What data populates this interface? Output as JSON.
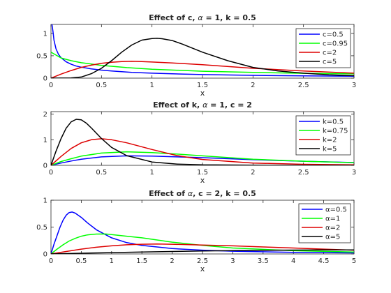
{
  "figure": {
    "background": "#ffffff",
    "axes_color": "#262626"
  },
  "chart_data": [
    {
      "type": "line",
      "title_parts": [
        "Effect of c, ",
        "α",
        " = 1, k = 0.5"
      ],
      "title": "Effect of c, α = 1, k = 0.5",
      "xlabel": "x",
      "ylabel": "",
      "xlim": [
        0,
        3
      ],
      "ylim": [
        0,
        1.2
      ],
      "xticks": [
        0,
        0.5,
        1,
        1.5,
        2,
        2.5,
        3
      ],
      "xtick_labels": [
        "0",
        "0.5",
        "1",
        "1.5",
        "2",
        "2.5",
        "3"
      ],
      "yticks": [
        0,
        0.5,
        1
      ],
      "ytick_labels": [
        "0",
        "0.5",
        "1"
      ],
      "grid": false,
      "legend_position": "top-right",
      "series": [
        {
          "name": "c=0.5",
          "color": "#0000ff",
          "x": [
            0.005,
            0.01,
            0.02,
            0.03,
            0.05,
            0.075,
            0.1,
            0.15,
            0.2,
            0.25,
            0.3,
            0.4,
            0.5,
            0.6,
            0.8,
            1.0,
            1.2,
            1.5,
            2.0,
            2.5,
            3.0
          ],
          "y": [
            1.2,
            1.2,
            1.04,
            0.85,
            0.655,
            0.53,
            0.455,
            0.365,
            0.31,
            0.27,
            0.245,
            0.205,
            0.18,
            0.16,
            0.13,
            0.11,
            0.097,
            0.08,
            0.062,
            0.05,
            0.042
          ]
        },
        {
          "name": "c=0.95",
          "color": "#00ff00",
          "x": [
            0,
            0.1,
            0.2,
            0.3,
            0.5,
            0.75,
            1.0,
            1.5,
            2.0,
            2.5,
            3.0
          ],
          "y": [
            0.58,
            0.45,
            0.39,
            0.345,
            0.285,
            0.235,
            0.2,
            0.155,
            0.128,
            0.108,
            0.095
          ]
        },
        {
          "name": "c=2",
          "color": "#dd0000",
          "x": [
            0,
            0.1,
            0.2,
            0.3,
            0.4,
            0.5,
            0.6,
            0.7,
            0.8,
            0.9,
            1.0,
            1.2,
            1.5,
            2.0,
            2.5,
            3.0
          ],
          "y": [
            0,
            0.09,
            0.17,
            0.24,
            0.29,
            0.33,
            0.355,
            0.37,
            0.375,
            0.37,
            0.36,
            0.34,
            0.3,
            0.22,
            0.16,
            0.11
          ]
        },
        {
          "name": "c=5",
          "color": "#000000",
          "x": [
            0,
            0.2,
            0.3,
            0.4,
            0.5,
            0.6,
            0.7,
            0.8,
            0.9,
            1.0,
            1.05,
            1.1,
            1.2,
            1.3,
            1.5,
            1.75,
            2.0,
            2.25,
            2.5,
            2.75,
            3.0
          ],
          "y": [
            0,
            0.003,
            0.025,
            0.1,
            0.22,
            0.39,
            0.58,
            0.74,
            0.85,
            0.885,
            0.89,
            0.88,
            0.84,
            0.76,
            0.58,
            0.39,
            0.24,
            0.16,
            0.11,
            0.075,
            0.055
          ]
        }
      ]
    },
    {
      "type": "line",
      "title_parts": [
        "Effect of k, ",
        "α",
        " = 1, c = 2"
      ],
      "title": "Effect of k, α = 1, c = 2",
      "xlabel": "x",
      "ylabel": "",
      "xlim": [
        0,
        3
      ],
      "ylim": [
        0,
        2.1
      ],
      "xticks": [
        0,
        0.5,
        1,
        1.5,
        2,
        2.5,
        3
      ],
      "xtick_labels": [
        "0",
        "0.5",
        "1",
        "1.5",
        "2",
        "2.5",
        "3"
      ],
      "yticks": [
        0,
        1,
        2
      ],
      "ytick_labels": [
        "0",
        "1",
        "2"
      ],
      "grid": false,
      "legend_position": "top-right",
      "series": [
        {
          "name": "k=0.5",
          "color": "#0000ff",
          "x": [
            0,
            0.1,
            0.2,
            0.3,
            0.5,
            0.75,
            1.0,
            1.25,
            1.5,
            2.0,
            2.5,
            3.0
          ],
          "y": [
            0,
            0.09,
            0.17,
            0.24,
            0.33,
            0.37,
            0.36,
            0.33,
            0.3,
            0.22,
            0.16,
            0.11
          ]
        },
        {
          "name": "k=0.75",
          "color": "#00ff00",
          "x": [
            0,
            0.1,
            0.2,
            0.3,
            0.5,
            0.75,
            1.0,
            1.25,
            1.5,
            2.0,
            2.5,
            3.0
          ],
          "y": [
            0,
            0.15,
            0.26,
            0.36,
            0.48,
            0.53,
            0.5,
            0.44,
            0.37,
            0.24,
            0.16,
            0.1
          ]
        },
        {
          "name": "k=2",
          "color": "#dd0000",
          "x": [
            0,
            0.1,
            0.2,
            0.3,
            0.4,
            0.5,
            0.6,
            0.75,
            1.0,
            1.25,
            1.5,
            2.0,
            2.5,
            3.0
          ],
          "y": [
            0,
            0.35,
            0.66,
            0.88,
            1.0,
            1.04,
            1.0,
            0.88,
            0.62,
            0.38,
            0.23,
            0.09,
            0.04,
            0.02
          ]
        },
        {
          "name": "k=5",
          "color": "#000000",
          "x": [
            0,
            0.05,
            0.1,
            0.15,
            0.2,
            0.25,
            0.3,
            0.35,
            0.4,
            0.5,
            0.6,
            0.75,
            1.0,
            1.25,
            1.5,
            2.0,
            3.0
          ],
          "y": [
            0,
            0.55,
            1.05,
            1.45,
            1.7,
            1.8,
            1.78,
            1.65,
            1.46,
            1.05,
            0.7,
            0.38,
            0.13,
            0.05,
            0.02,
            0.005,
            0
          ]
        }
      ]
    },
    {
      "type": "line",
      "title_parts": [
        "Effect of ",
        "α",
        ", c = 2, k = 0.5"
      ],
      "title": "Effect of α, c = 2, k = 0.5",
      "xlabel": "x",
      "ylabel": "",
      "xlim": [
        0,
        5
      ],
      "ylim": [
        0,
        1
      ],
      "xticks": [
        0,
        0.5,
        1,
        1.5,
        2,
        2.5,
        3,
        3.5,
        4,
        4.5,
        5
      ],
      "xtick_labels": [
        "0",
        "0.5",
        "1",
        "1.5",
        "2",
        "2.5",
        "3",
        "3.5",
        "4",
        "4.5",
        "5"
      ],
      "yticks": [
        0,
        0.5,
        1
      ],
      "ytick_labels": [
        "0",
        "0.5",
        "1"
      ],
      "grid": false,
      "legend_position": "top-right",
      "series": [
        {
          "name": "α=0.5",
          "color": "#0000ff",
          "x": [
            0,
            0.05,
            0.1,
            0.15,
            0.2,
            0.25,
            0.3,
            0.35,
            0.4,
            0.5,
            0.6,
            0.75,
            1.0,
            1.25,
            1.5,
            2.0,
            2.5,
            3.0,
            4.0,
            5.0
          ],
          "y": [
            0,
            0.18,
            0.34,
            0.5,
            0.63,
            0.72,
            0.77,
            0.78,
            0.76,
            0.68,
            0.58,
            0.45,
            0.3,
            0.21,
            0.16,
            0.1,
            0.07,
            0.05,
            0.03,
            0.02
          ]
        },
        {
          "name": "α=1",
          "color": "#00ff00",
          "x": [
            0,
            0.1,
            0.2,
            0.3,
            0.4,
            0.5,
            0.6,
            0.75,
            0.9,
            1.0,
            1.25,
            1.5,
            2.0,
            2.5,
            3.0,
            4.0,
            5.0
          ],
          "y": [
            0,
            0.09,
            0.17,
            0.24,
            0.29,
            0.33,
            0.355,
            0.37,
            0.372,
            0.36,
            0.33,
            0.3,
            0.22,
            0.16,
            0.11,
            0.06,
            0.035
          ]
        },
        {
          "name": "α=2",
          "color": "#dd0000",
          "x": [
            0,
            0.25,
            0.5,
            0.75,
            1.0,
            1.25,
            1.5,
            1.75,
            2.0,
            2.5,
            3.0,
            3.5,
            4.0,
            4.5,
            5.0
          ],
          "y": [
            0,
            0.045,
            0.09,
            0.125,
            0.15,
            0.17,
            0.18,
            0.185,
            0.18,
            0.165,
            0.15,
            0.13,
            0.11,
            0.09,
            0.07
          ]
        },
        {
          "name": "α=5",
          "color": "#000000",
          "x": [
            0,
            0.5,
            1.0,
            1.5,
            2.0,
            2.5,
            3.0,
            3.5,
            4.0,
            4.5,
            5.0
          ],
          "y": [
            0,
            0.013,
            0.025,
            0.035,
            0.045,
            0.055,
            0.062,
            0.068,
            0.072,
            0.074,
            0.075
          ]
        }
      ]
    }
  ]
}
